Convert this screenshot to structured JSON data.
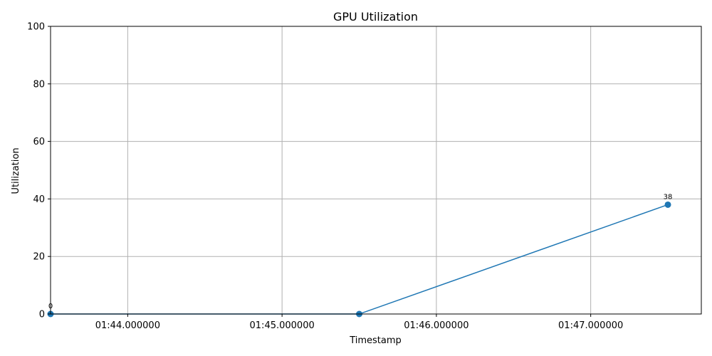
{
  "chart_data": {
    "type": "line",
    "title": "GPU Utilization",
    "xlabel": "Timestamp",
    "ylabel": "Utilization",
    "x_axis": {
      "range": [
        "01:43:30.000000",
        "01:47:43.000000"
      ],
      "ticks": [
        {
          "value": "01:44:00.000000",
          "label": "01:44.000000"
        },
        {
          "value": "01:45:00.000000",
          "label": "01:45.000000"
        },
        {
          "value": "01:46:00.000000",
          "label": "01:46.000000"
        },
        {
          "value": "01:47:00.000000",
          "label": "01:47.000000"
        }
      ]
    },
    "y_axis": {
      "range": [
        0,
        100
      ],
      "ticks": [
        0,
        20,
        40,
        60,
        80,
        100
      ]
    },
    "grid": true,
    "series": [
      {
        "color": "#1f77b4",
        "points": [
          {
            "x": "01:43:30.000000",
            "y": 0,
            "label": "0"
          },
          {
            "x": "01:45:30.000000",
            "y": 0,
            "label": ""
          },
          {
            "x": "01:47:30.000000",
            "y": 38,
            "label": "38"
          }
        ]
      }
    ]
  }
}
